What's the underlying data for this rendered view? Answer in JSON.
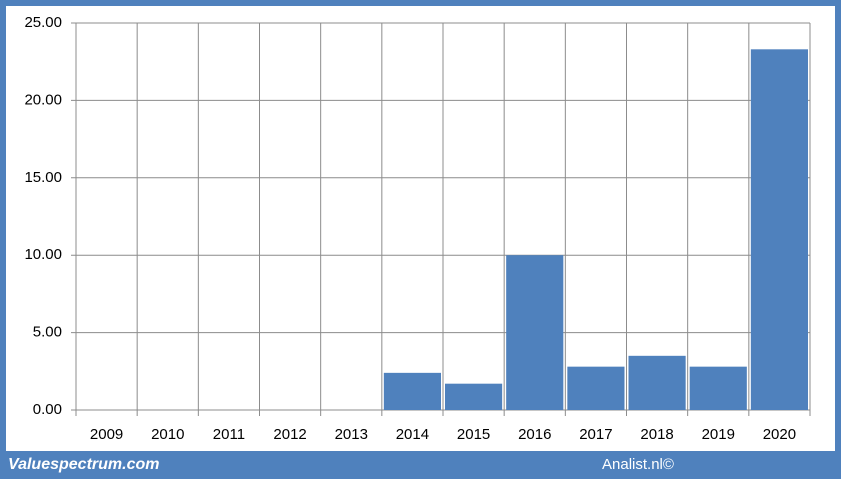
{
  "chart_data": {
    "type": "bar",
    "categories": [
      "2009",
      "2010",
      "2011",
      "2012",
      "2013",
      "2014",
      "2015",
      "2016",
      "2017",
      "2018",
      "2019",
      "2020"
    ],
    "values": [
      null,
      null,
      null,
      null,
      null,
      2.4,
      1.7,
      10.0,
      2.8,
      3.5,
      2.8,
      23.3
    ],
    "color": "#4f81bd",
    "ylim": [
      0,
      25
    ],
    "yticks": [
      {
        "value": 0,
        "label": "0.00"
      },
      {
        "value": 5,
        "label": "5.00"
      },
      {
        "value": 10,
        "label": "10.00"
      },
      {
        "value": 15,
        "label": "15.00"
      },
      {
        "value": 20,
        "label": "20.00"
      },
      {
        "value": 25,
        "label": "25.00"
      }
    ],
    "grid": true,
    "footer_left": "Valuespectrum.com",
    "footer_right": "Analist.nl©"
  }
}
